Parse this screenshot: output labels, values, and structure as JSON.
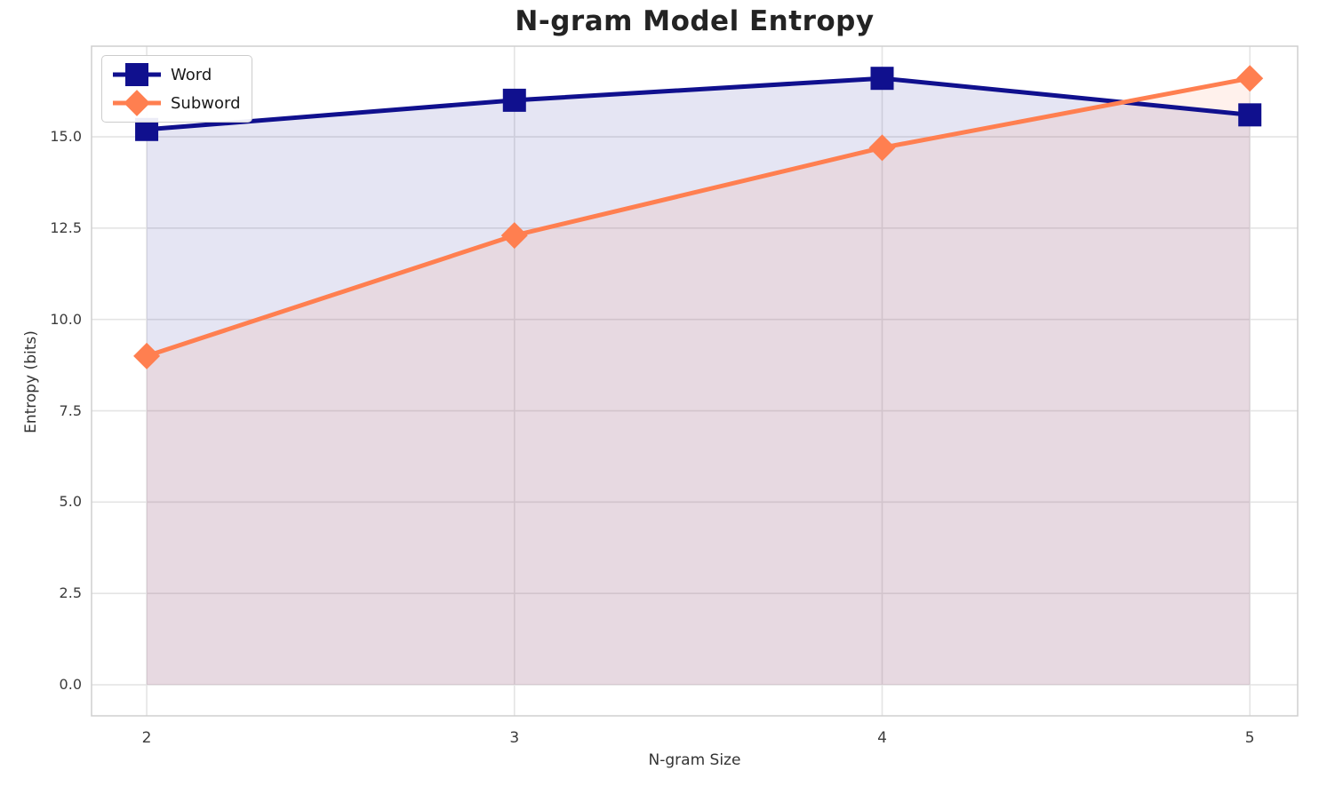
{
  "chart_data": {
    "type": "line",
    "title": "N-gram Model Entropy",
    "xlabel": "N-gram Size",
    "ylabel": "Entropy (bits)",
    "x": [
      2,
      3,
      4,
      5
    ],
    "series": [
      {
        "name": "Word",
        "marker": "square",
        "color": "#10108e",
        "fill_alpha": 0.11,
        "values": [
          15.2,
          16.0,
          16.6,
          15.6
        ]
      },
      {
        "name": "Subword",
        "marker": "diamond",
        "color": "#FF7F50",
        "fill_alpha": 0.11,
        "values": [
          9.0,
          12.3,
          14.7,
          16.6
        ]
      }
    ],
    "fill_to_zero": true,
    "grid": true,
    "legend_position": "upper-left",
    "xtick_labels": [
      "2",
      "3",
      "4",
      "5"
    ],
    "ytick_values": [
      0.0,
      2.5,
      5.0,
      7.5,
      10.0,
      12.5,
      15.0
    ],
    "ytick_labels": [
      "0.0",
      "2.5",
      "5.0",
      "7.5",
      "10.0",
      "12.5",
      "15.0"
    ],
    "xlim": [
      1.85,
      5.13
    ],
    "ylim": [
      -0.85,
      17.48
    ]
  },
  "style_colors": {
    "grid": "#e4e4e4",
    "spine": "#cfcfcf",
    "background": "#ffffff"
  }
}
